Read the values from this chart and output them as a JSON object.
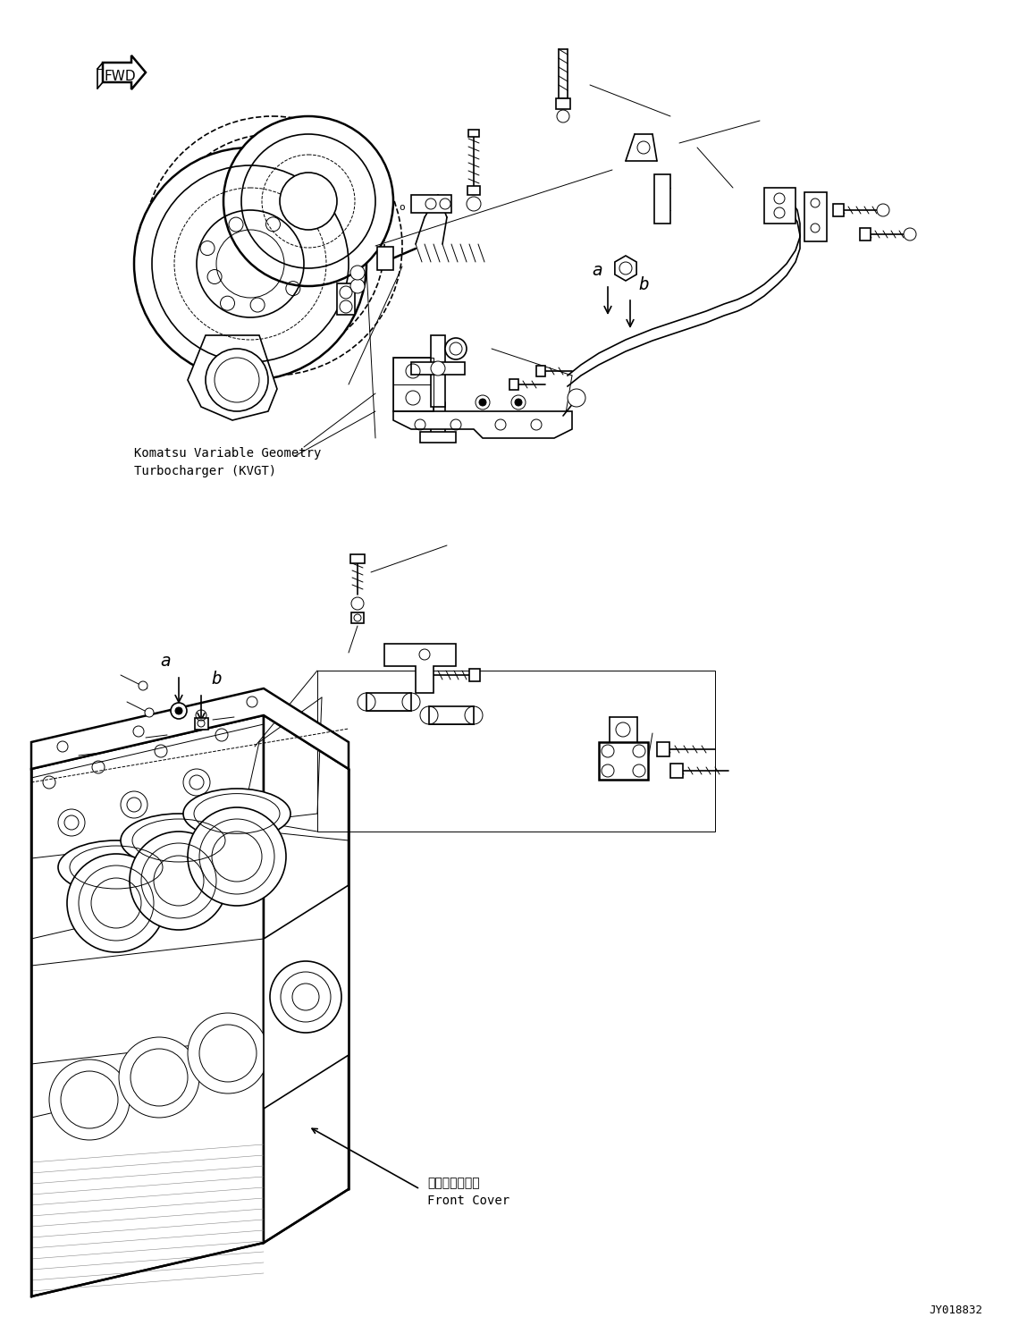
{
  "background_color": "#ffffff",
  "line_color": "#000000",
  "fig_width": 11.49,
  "fig_height": 14.92,
  "dpi": 100,
  "kvgt_label1": "Komatsu Variable Geometry",
  "kvgt_label2": "Turbocharger (KVGT)",
  "front_cover_jp": "フロントカバー",
  "front_cover_en": "Front Cover",
  "part_number": "JY018832",
  "label_a": "a",
  "label_b": "b"
}
